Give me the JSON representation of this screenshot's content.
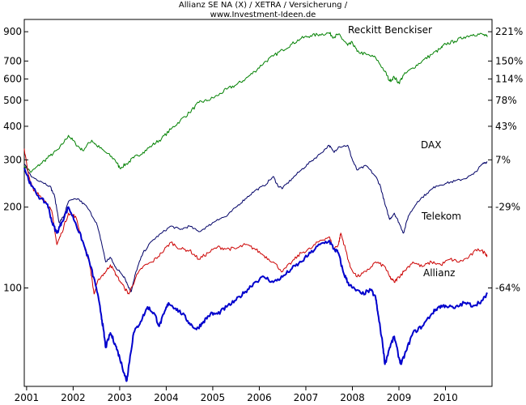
{
  "chart_data": {
    "type": "line",
    "title": "Allianz SE NA (X) / XETRA / Versicherung /",
    "subtitle": "www.Investment-Ideen.de",
    "xlabel": "",
    "ylabel": "",
    "x_ticks": [
      "2001",
      "2002",
      "2003",
      "2004",
      "2005",
      "2006",
      "2007",
      "2008",
      "2009",
      "2010"
    ],
    "y_scale": "log",
    "y_ticks_left": [
      100,
      200,
      300,
      400,
      500,
      600,
      700,
      900
    ],
    "y_ticks_right": [
      "221%",
      "150%",
      "114%",
      "78%",
      "43%",
      "7%",
      "-29%",
      "-64%"
    ],
    "y_ticks_right_values": [
      900,
      700,
      600,
      500,
      400,
      300,
      200,
      100
    ],
    "xlim": [
      2000.95,
      2011.0
    ],
    "ylim": [
      43,
      1000
    ],
    "grid": false,
    "legend": "inline-labels",
    "series": [
      {
        "name": "Reckitt Benckiser",
        "color": "#008000",
        "points": [
          [
            2000.95,
            285
          ],
          [
            2001.1,
            270
          ],
          [
            2001.3,
            290
          ],
          [
            2001.5,
            310
          ],
          [
            2001.7,
            330
          ],
          [
            2001.9,
            370
          ],
          [
            2002.05,
            345
          ],
          [
            2002.2,
            325
          ],
          [
            2002.4,
            355
          ],
          [
            2002.5,
            340
          ],
          [
            2002.7,
            320
          ],
          [
            2002.9,
            300
          ],
          [
            2003.0,
            280
          ],
          [
            2003.15,
            290
          ],
          [
            2003.3,
            305
          ],
          [
            2003.5,
            320
          ],
          [
            2003.7,
            340
          ],
          [
            2003.9,
            360
          ],
          [
            2004.1,
            390
          ],
          [
            2004.3,
            420
          ],
          [
            2004.5,
            450
          ],
          [
            2004.7,
            490
          ],
          [
            2004.9,
            500
          ],
          [
            2005.1,
            520
          ],
          [
            2005.3,
            550
          ],
          [
            2005.5,
            570
          ],
          [
            2005.7,
            600
          ],
          [
            2005.9,
            640
          ],
          [
            2006.1,
            690
          ],
          [
            2006.3,
            730
          ],
          [
            2006.5,
            770
          ],
          [
            2006.7,
            810
          ],
          [
            2006.9,
            850
          ],
          [
            2007.1,
            870
          ],
          [
            2007.3,
            880
          ],
          [
            2007.5,
            890
          ],
          [
            2007.6,
            860
          ],
          [
            2007.7,
            880
          ],
          [
            2007.8,
            840
          ],
          [
            2007.9,
            800
          ],
          [
            2008.0,
            820
          ],
          [
            2008.1,
            760
          ],
          [
            2008.3,
            740
          ],
          [
            2008.5,
            720
          ],
          [
            2008.7,
            640
          ],
          [
            2008.8,
            590
          ],
          [
            2008.9,
            610
          ],
          [
            2009.0,
            580
          ],
          [
            2009.1,
            620
          ],
          [
            2009.3,
            660
          ],
          [
            2009.5,
            700
          ],
          [
            2009.7,
            740
          ],
          [
            2009.9,
            780
          ],
          [
            2010.0,
            810
          ],
          [
            2010.2,
            830
          ],
          [
            2010.4,
            860
          ],
          [
            2010.6,
            880
          ],
          [
            2010.8,
            880
          ],
          [
            2010.9,
            860
          ]
        ]
      },
      {
        "name": "DAX",
        "color": "#000066",
        "points": [
          [
            2000.95,
            290
          ],
          [
            2001.1,
            260
          ],
          [
            2001.3,
            250
          ],
          [
            2001.5,
            240
          ],
          [
            2001.6,
            220
          ],
          [
            2001.7,
            175
          ],
          [
            2001.8,
            185
          ],
          [
            2001.9,
            210
          ],
          [
            2002.1,
            215
          ],
          [
            2002.3,
            200
          ],
          [
            2002.5,
            175
          ],
          [
            2002.6,
            150
          ],
          [
            2002.7,
            125
          ],
          [
            2002.8,
            130
          ],
          [
            2002.9,
            120
          ],
          [
            2003.0,
            115
          ],
          [
            2003.1,
            110
          ],
          [
            2003.2,
            100
          ],
          [
            2003.25,
            97
          ],
          [
            2003.35,
            115
          ],
          [
            2003.5,
            135
          ],
          [
            2003.7,
            150
          ],
          [
            2003.9,
            160
          ],
          [
            2004.1,
            170
          ],
          [
            2004.3,
            165
          ],
          [
            2004.5,
            170
          ],
          [
            2004.7,
            162
          ],
          [
            2004.9,
            170
          ],
          [
            2005.1,
            180
          ],
          [
            2005.3,
            185
          ],
          [
            2005.5,
            200
          ],
          [
            2005.7,
            215
          ],
          [
            2005.9,
            230
          ],
          [
            2006.1,
            240
          ],
          [
            2006.3,
            260
          ],
          [
            2006.4,
            240
          ],
          [
            2006.5,
            235
          ],
          [
            2006.7,
            255
          ],
          [
            2006.9,
            275
          ],
          [
            2007.1,
            295
          ],
          [
            2007.3,
            315
          ],
          [
            2007.5,
            340
          ],
          [
            2007.6,
            320
          ],
          [
            2007.7,
            335
          ],
          [
            2007.9,
            340
          ],
          [
            2008.0,
            300
          ],
          [
            2008.1,
            275
          ],
          [
            2008.3,
            285
          ],
          [
            2008.5,
            260
          ],
          [
            2008.6,
            240
          ],
          [
            2008.7,
            205
          ],
          [
            2008.8,
            180
          ],
          [
            2008.9,
            190
          ],
          [
            2009.0,
            175
          ],
          [
            2009.1,
            160
          ],
          [
            2009.2,
            185
          ],
          [
            2009.4,
            210
          ],
          [
            2009.6,
            225
          ],
          [
            2009.8,
            240
          ],
          [
            2010.0,
            245
          ],
          [
            2010.2,
            250
          ],
          [
            2010.4,
            255
          ],
          [
            2010.6,
            265
          ],
          [
            2010.8,
            290
          ],
          [
            2010.9,
            295
          ]
        ]
      },
      {
        "name": "Telekom",
        "color": "#cc0000",
        "points": [
          [
            2000.95,
            330
          ],
          [
            2001.05,
            260
          ],
          [
            2001.15,
            230
          ],
          [
            2001.3,
            220
          ],
          [
            2001.45,
            205
          ],
          [
            2001.55,
            190
          ],
          [
            2001.65,
            145
          ],
          [
            2001.75,
            160
          ],
          [
            2001.9,
            190
          ],
          [
            2002.05,
            185
          ],
          [
            2002.2,
            150
          ],
          [
            2002.35,
            125
          ],
          [
            2002.45,
            95
          ],
          [
            2002.55,
            108
          ],
          [
            2002.7,
            115
          ],
          [
            2002.8,
            122
          ],
          [
            2002.95,
            110
          ],
          [
            2003.1,
            100
          ],
          [
            2003.2,
            95
          ],
          [
            2003.35,
            110
          ],
          [
            2003.5,
            120
          ],
          [
            2003.7,
            125
          ],
          [
            2003.9,
            135
          ],
          [
            2004.1,
            148
          ],
          [
            2004.3,
            140
          ],
          [
            2004.5,
            138
          ],
          [
            2004.7,
            128
          ],
          [
            2004.9,
            135
          ],
          [
            2005.1,
            142
          ],
          [
            2005.3,
            140
          ],
          [
            2005.5,
            140
          ],
          [
            2005.7,
            145
          ],
          [
            2005.9,
            140
          ],
          [
            2006.1,
            132
          ],
          [
            2006.3,
            125
          ],
          [
            2006.5,
            115
          ],
          [
            2006.7,
            125
          ],
          [
            2006.9,
            135
          ],
          [
            2007.1,
            140
          ],
          [
            2007.3,
            150
          ],
          [
            2007.5,
            155
          ],
          [
            2007.6,
            140
          ],
          [
            2007.7,
            145
          ],
          [
            2007.75,
            160
          ],
          [
            2007.85,
            140
          ],
          [
            2007.95,
            120
          ],
          [
            2008.1,
            110
          ],
          [
            2008.3,
            115
          ],
          [
            2008.5,
            125
          ],
          [
            2008.7,
            120
          ],
          [
            2008.8,
            110
          ],
          [
            2008.9,
            105
          ],
          [
            2009.0,
            110
          ],
          [
            2009.1,
            115
          ],
          [
            2009.3,
            125
          ],
          [
            2009.5,
            120
          ],
          [
            2009.7,
            125
          ],
          [
            2009.9,
            122
          ],
          [
            2010.1,
            128
          ],
          [
            2010.3,
            125
          ],
          [
            2010.5,
            130
          ],
          [
            2010.7,
            140
          ],
          [
            2010.85,
            135
          ],
          [
            2010.9,
            132
          ]
        ]
      },
      {
        "name": "Allianz",
        "color": "#0000cc",
        "points": [
          [
            2000.95,
            280
          ],
          [
            2001.1,
            240
          ],
          [
            2001.3,
            215
          ],
          [
            2001.45,
            205
          ],
          [
            2001.55,
            175
          ],
          [
            2001.65,
            160
          ],
          [
            2001.75,
            175
          ],
          [
            2001.9,
            200
          ],
          [
            2002.05,
            175
          ],
          [
            2002.2,
            150
          ],
          [
            2002.35,
            125
          ],
          [
            2002.5,
            100
          ],
          [
            2002.6,
            80
          ],
          [
            2002.65,
            70
          ],
          [
            2002.7,
            60
          ],
          [
            2002.8,
            68
          ],
          [
            2002.9,
            62
          ],
          [
            2003.0,
            55
          ],
          [
            2003.1,
            48
          ],
          [
            2003.15,
            45
          ],
          [
            2003.2,
            52
          ],
          [
            2003.3,
            68
          ],
          [
            2003.45,
            75
          ],
          [
            2003.6,
            85
          ],
          [
            2003.75,
            80
          ],
          [
            2003.85,
            72
          ],
          [
            2003.95,
            80
          ],
          [
            2004.05,
            88
          ],
          [
            2004.2,
            84
          ],
          [
            2004.35,
            80
          ],
          [
            2004.5,
            74
          ],
          [
            2004.65,
            70
          ],
          [
            2004.8,
            75
          ],
          [
            2004.95,
            80
          ],
          [
            2005.1,
            80
          ],
          [
            2005.3,
            85
          ],
          [
            2005.5,
            90
          ],
          [
            2005.7,
            97
          ],
          [
            2005.9,
            105
          ],
          [
            2006.1,
            110
          ],
          [
            2006.3,
            105
          ],
          [
            2006.5,
            110
          ],
          [
            2006.7,
            118
          ],
          [
            2006.9,
            125
          ],
          [
            2007.1,
            135
          ],
          [
            2007.3,
            145
          ],
          [
            2007.5,
            150
          ],
          [
            2007.6,
            140
          ],
          [
            2007.7,
            135
          ],
          [
            2007.8,
            115
          ],
          [
            2007.9,
            105
          ],
          [
            2008.0,
            100
          ],
          [
            2008.2,
            95
          ],
          [
            2008.4,
            98
          ],
          [
            2008.5,
            92
          ],
          [
            2008.55,
            80
          ],
          [
            2008.65,
            62
          ],
          [
            2008.7,
            52
          ],
          [
            2008.8,
            60
          ],
          [
            2008.9,
            66
          ],
          [
            2009.0,
            55
          ],
          [
            2009.05,
            52
          ],
          [
            2009.15,
            58
          ],
          [
            2009.3,
            68
          ],
          [
            2009.5,
            72
          ],
          [
            2009.7,
            80
          ],
          [
            2009.85,
            85
          ],
          [
            2010.0,
            86
          ],
          [
            2010.2,
            84
          ],
          [
            2010.4,
            88
          ],
          [
            2010.6,
            86
          ],
          [
            2010.8,
            90
          ],
          [
            2010.9,
            95
          ]
        ]
      }
    ]
  }
}
